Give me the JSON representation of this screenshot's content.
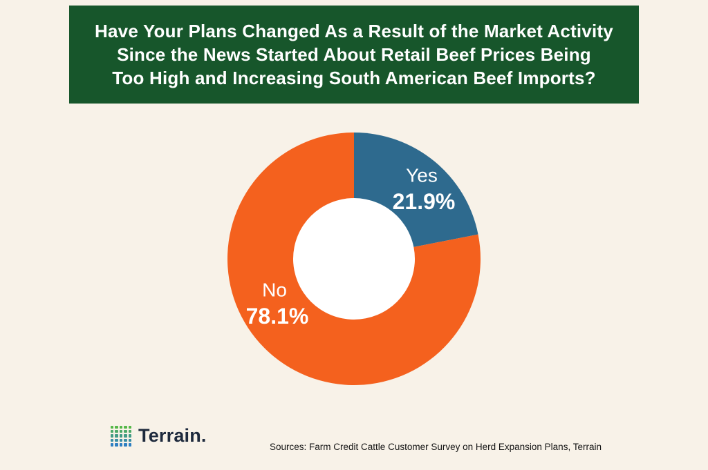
{
  "header": {
    "title_lines": [
      "Have Your Plans Changed As a Result of the Market Activity",
      "Since the News Started About Retail Beef Prices Being",
      "Too High and Increasing South American Beef Imports?"
    ]
  },
  "chart_data": {
    "type": "pie",
    "subtype": "donut",
    "title": "Have Your Plans Changed As a Result of the Market Activity Since the News Started About Retail Beef Prices Being Too High and Increasing South American Beef Imports?",
    "categories": [
      "Yes",
      "No"
    ],
    "values": [
      21.9,
      78.1
    ],
    "unit": "percent",
    "colors": [
      "#2e6a8e",
      "#f4611e"
    ],
    "start_angle_deg": 0,
    "direction": "clockwise",
    "donut_hole_color": "#ffffff",
    "legend": "none",
    "labels": [
      {
        "name": "Yes",
        "value_text": "21.9%"
      },
      {
        "name": "No",
        "value_text": "78.1%"
      }
    ]
  },
  "footer": {
    "logo_text": "Terrain.",
    "logo_colors": {
      "top": "#55b748",
      "bottom": "#2e7fc2"
    },
    "source_text": "Sources: Farm Credit Cattle Customer Survey on Herd Expansion Plans, Terrain"
  },
  "colors": {
    "background": "#f8f2e8",
    "banner_green": "#17562b",
    "slice_yes_blue": "#2e6a8e",
    "slice_no_orange": "#f4611e",
    "label_text": "#ffffff"
  }
}
